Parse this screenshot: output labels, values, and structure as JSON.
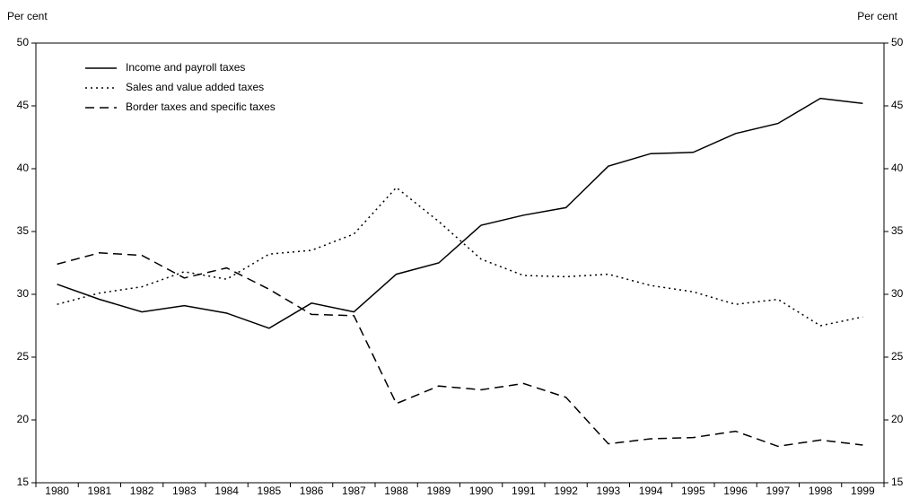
{
  "chart_data": {
    "type": "line",
    "ylabel": "Per cent",
    "y2label": "Per cent",
    "categories": [
      "1980",
      "1981",
      "1982",
      "1983",
      "1984",
      "1985",
      "1986",
      "1987",
      "1988",
      "1989",
      "1990",
      "1991",
      "1992",
      "1993",
      "1994",
      "1995",
      "1996",
      "1997",
      "1998",
      "1999"
    ],
    "series": [
      {
        "name": "Income and payroll taxes",
        "color": "#000000",
        "dash": "solid",
        "values": [
          30.8,
          29.6,
          28.6,
          29.1,
          28.5,
          27.3,
          29.3,
          28.6,
          31.6,
          32.5,
          35.5,
          36.3,
          36.9,
          40.2,
          41.2,
          41.3,
          42.8,
          43.6,
          45.6,
          45.2
        ]
      },
      {
        "name": "Sales and value added taxes",
        "color": "#000000",
        "dash": "dotted",
        "values": [
          29.2,
          30.1,
          30.6,
          31.8,
          31.2,
          33.2,
          33.5,
          34.8,
          38.5,
          35.8,
          32.8,
          31.5,
          31.4,
          31.6,
          30.7,
          30.2,
          29.2,
          29.6,
          27.5,
          28.2
        ]
      },
      {
        "name": "Border taxes and specific taxes",
        "color": "#000000",
        "dash": "dashed",
        "values": [
          32.4,
          33.3,
          33.1,
          31.3,
          32.1,
          30.4,
          28.4,
          28.3,
          21.3,
          22.7,
          22.4,
          22.9,
          21.8,
          18.1,
          18.5,
          18.6,
          19.1,
          17.9,
          18.4,
          18.0
        ]
      }
    ],
    "ylim": [
      15,
      50
    ],
    "yticks": [
      15,
      20,
      25,
      30,
      35,
      40,
      45,
      50
    ],
    "y2lim": [
      15,
      50
    ],
    "y2ticks": [
      15,
      20,
      25,
      30,
      35,
      40,
      45,
      50
    ],
    "grid": false,
    "legend": "upper left"
  }
}
